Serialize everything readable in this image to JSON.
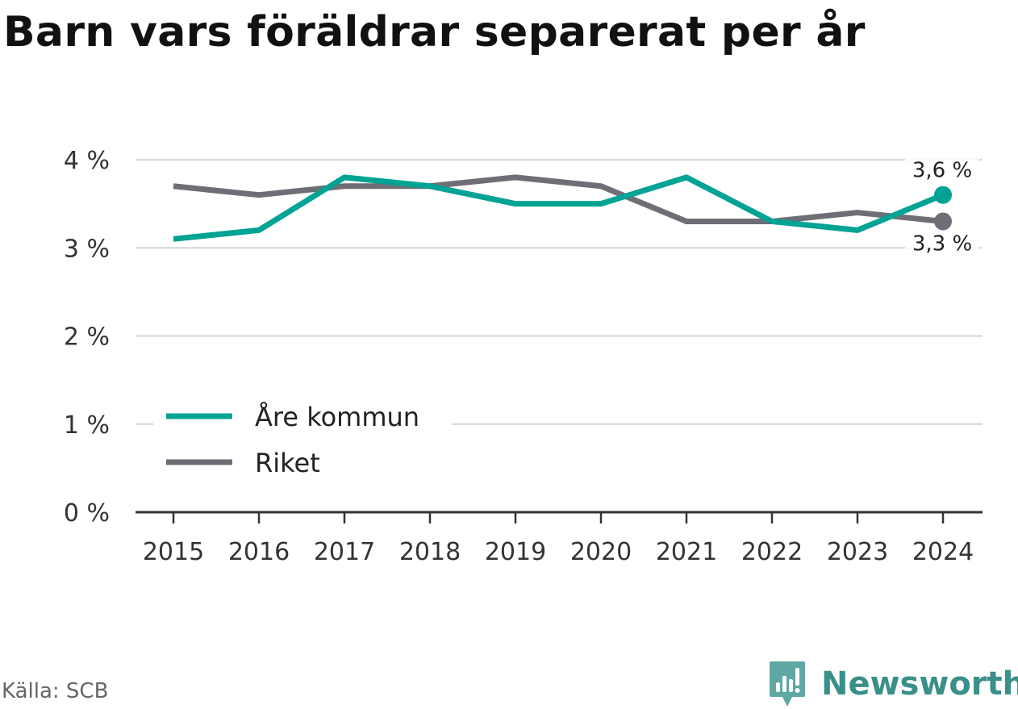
{
  "header": {
    "title": "Barn vars föräldrar separerat per år"
  },
  "footer": {
    "source": "Källa: SCB",
    "brand": "Newsworthy",
    "brand_icon": "newsworthy-logo-icon"
  },
  "colors": {
    "are_kommun": "#00a394",
    "riket": "#6e6e76",
    "grid": "#dddddd",
    "axis": "#333333",
    "brand": "#3a8f8a"
  },
  "chart_data": {
    "type": "line",
    "title": "Barn vars föräldrar separerat per år",
    "xlabel": "",
    "ylabel": "",
    "x": [
      "2015",
      "2016",
      "2017",
      "2018",
      "2019",
      "2020",
      "2021",
      "2022",
      "2023",
      "2024"
    ],
    "ylim": [
      0,
      4
    ],
    "yticks": [
      0,
      1,
      2,
      3,
      4
    ],
    "ytick_labels": [
      "0 %",
      "1 %",
      "2 %",
      "3 %",
      "4 %"
    ],
    "grid": "horizontal",
    "legend": "bottom-left",
    "series": [
      {
        "name": "Åre kommun",
        "color": "#00a394",
        "values": [
          3.1,
          3.2,
          3.8,
          3.7,
          3.5,
          3.5,
          3.8,
          3.3,
          3.2,
          3.6
        ],
        "end_label": "3,6 %"
      },
      {
        "name": "Riket",
        "color": "#6e6e76",
        "values": [
          3.7,
          3.6,
          3.7,
          3.7,
          3.8,
          3.7,
          3.3,
          3.3,
          3.4,
          3.3
        ],
        "end_label": "3,3 %"
      }
    ]
  }
}
